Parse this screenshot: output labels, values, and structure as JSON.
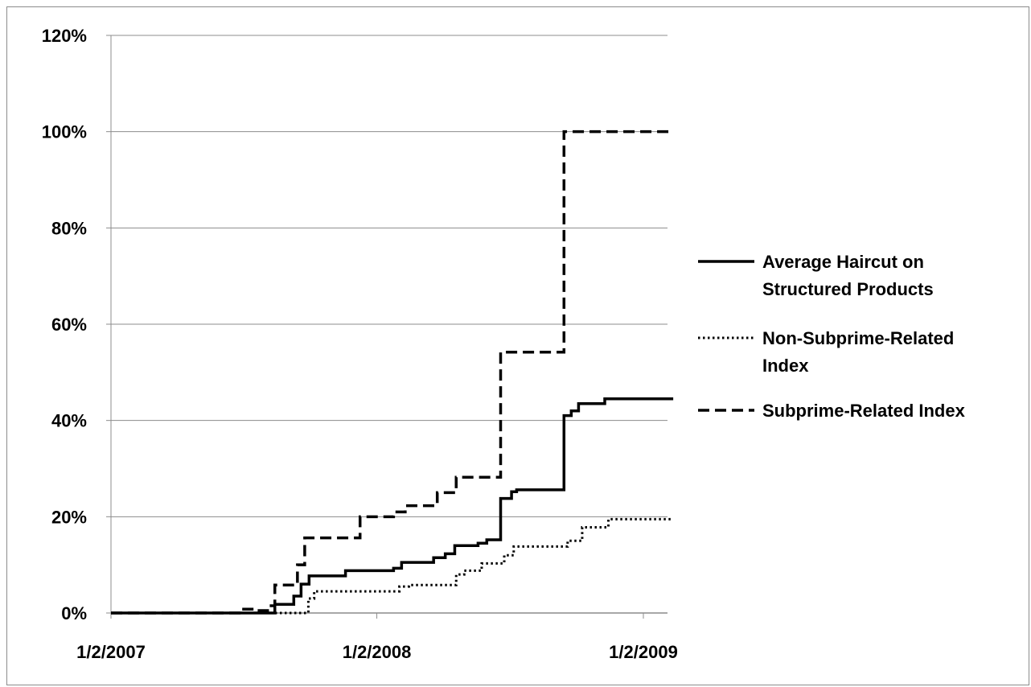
{
  "chart_data": {
    "type": "line",
    "title": "",
    "xlabel": "",
    "ylabel": "",
    "x_type": "date",
    "xlim": [
      "2007-01-02",
      "2009-02-12"
    ],
    "ylim": [
      0,
      120
    ],
    "y_unit": "%",
    "y_ticks": [
      0,
      20,
      40,
      60,
      80,
      100,
      120
    ],
    "y_tick_labels": [
      "0%",
      "20%",
      "40%",
      "60%",
      "80%",
      "100%",
      "120%"
    ],
    "x_ticks": [
      "2007-01-02",
      "2008-01-02",
      "2009-01-02"
    ],
    "x_tick_labels": [
      "1/2/2007",
      "1/2/2008",
      "1/2/2009"
    ],
    "grid": "horizontal",
    "legend_position": "right",
    "series": [
      {
        "name": "Average Haircut on Structured Products",
        "style": "solid",
        "color": "#000000",
        "points": [
          [
            "2007-01-02",
            0
          ],
          [
            "2007-08-15",
            0
          ],
          [
            "2007-08-15",
            1.8
          ],
          [
            "2007-09-10",
            1.8
          ],
          [
            "2007-09-10",
            3.5
          ],
          [
            "2007-09-20",
            3.5
          ],
          [
            "2007-09-20",
            6
          ],
          [
            "2007-10-01",
            6
          ],
          [
            "2007-10-01",
            7.7
          ],
          [
            "2007-11-20",
            7.7
          ],
          [
            "2007-11-20",
            8.8
          ],
          [
            "2008-01-25",
            8.8
          ],
          [
            "2008-01-25",
            9.3
          ],
          [
            "2008-02-05",
            9.3
          ],
          [
            "2008-02-05",
            10.5
          ],
          [
            "2008-03-20",
            10.5
          ],
          [
            "2008-03-20",
            11.5
          ],
          [
            "2008-04-05",
            11.5
          ],
          [
            "2008-04-05",
            12.3
          ],
          [
            "2008-04-18",
            12.3
          ],
          [
            "2008-04-18",
            14
          ],
          [
            "2008-05-20",
            14
          ],
          [
            "2008-05-20",
            14.5
          ],
          [
            "2008-06-01",
            14.5
          ],
          [
            "2008-06-01",
            15.2
          ],
          [
            "2008-06-20",
            15.2
          ],
          [
            "2008-06-20",
            23.8
          ],
          [
            "2008-07-05",
            23.8
          ],
          [
            "2008-07-05",
            25.2
          ],
          [
            "2008-07-12",
            25.2
          ],
          [
            "2008-07-12",
            25.6
          ],
          [
            "2008-09-15",
            25.6
          ],
          [
            "2008-09-15",
            41
          ],
          [
            "2008-09-25",
            41
          ],
          [
            "2008-09-25",
            42
          ],
          [
            "2008-10-05",
            42
          ],
          [
            "2008-10-05",
            43.5
          ],
          [
            "2008-11-10",
            43.5
          ],
          [
            "2008-11-10",
            44.5
          ],
          [
            "2009-02-12",
            44.5
          ]
        ]
      },
      {
        "name": "Non-Subprime-Related Index",
        "style": "dotted",
        "color": "#000000",
        "points": [
          [
            "2007-01-02",
            0
          ],
          [
            "2007-09-30",
            0
          ],
          [
            "2007-09-30",
            3
          ],
          [
            "2007-10-08",
            3
          ],
          [
            "2007-10-08",
            4.5
          ],
          [
            "2008-02-02",
            4.5
          ],
          [
            "2008-02-02",
            5.5
          ],
          [
            "2008-02-15",
            5.5
          ],
          [
            "2008-02-15",
            5.8
          ],
          [
            "2008-04-20",
            5.8
          ],
          [
            "2008-04-20",
            8
          ],
          [
            "2008-05-01",
            8
          ],
          [
            "2008-05-01",
            8.8
          ],
          [
            "2008-05-25",
            8.8
          ],
          [
            "2008-05-25",
            10.3
          ],
          [
            "2008-06-25",
            10.3
          ],
          [
            "2008-06-25",
            12
          ],
          [
            "2008-07-08",
            12
          ],
          [
            "2008-07-08",
            13.8
          ],
          [
            "2008-09-20",
            13.8
          ],
          [
            "2008-09-20",
            15
          ],
          [
            "2008-10-10",
            15
          ],
          [
            "2008-10-10",
            17.8
          ],
          [
            "2008-11-15",
            17.8
          ],
          [
            "2008-11-15",
            19.5
          ],
          [
            "2009-02-12",
            19.5
          ]
        ]
      },
      {
        "name": "Subprime-Related Index",
        "style": "dashed",
        "color": "#000000",
        "points": [
          [
            "2007-01-02",
            0
          ],
          [
            "2007-06-30",
            0
          ],
          [
            "2007-06-30",
            0.8
          ],
          [
            "2007-07-22",
            0.8
          ],
          [
            "2007-07-22",
            0.5
          ],
          [
            "2007-08-05",
            0.5
          ],
          [
            "2007-08-05",
            1.5
          ],
          [
            "2007-08-15",
            1.5
          ],
          [
            "2007-08-15",
            5.8
          ],
          [
            "2007-09-15",
            5.8
          ],
          [
            "2007-09-15",
            10
          ],
          [
            "2007-09-25",
            10
          ],
          [
            "2007-09-25",
            15.6
          ],
          [
            "2007-12-10",
            15.6
          ],
          [
            "2007-12-10",
            20
          ],
          [
            "2008-01-25",
            20
          ],
          [
            "2008-01-25",
            21
          ],
          [
            "2008-02-10",
            21
          ],
          [
            "2008-02-10",
            22.3
          ],
          [
            "2008-03-25",
            22.3
          ],
          [
            "2008-03-25",
            25
          ],
          [
            "2008-04-20",
            25
          ],
          [
            "2008-04-20",
            28.2
          ],
          [
            "2008-06-20",
            28.2
          ],
          [
            "2008-06-20",
            54.2
          ],
          [
            "2008-09-15",
            54.2
          ],
          [
            "2008-09-15",
            100
          ],
          [
            "2009-02-12",
            100
          ]
        ]
      }
    ]
  }
}
